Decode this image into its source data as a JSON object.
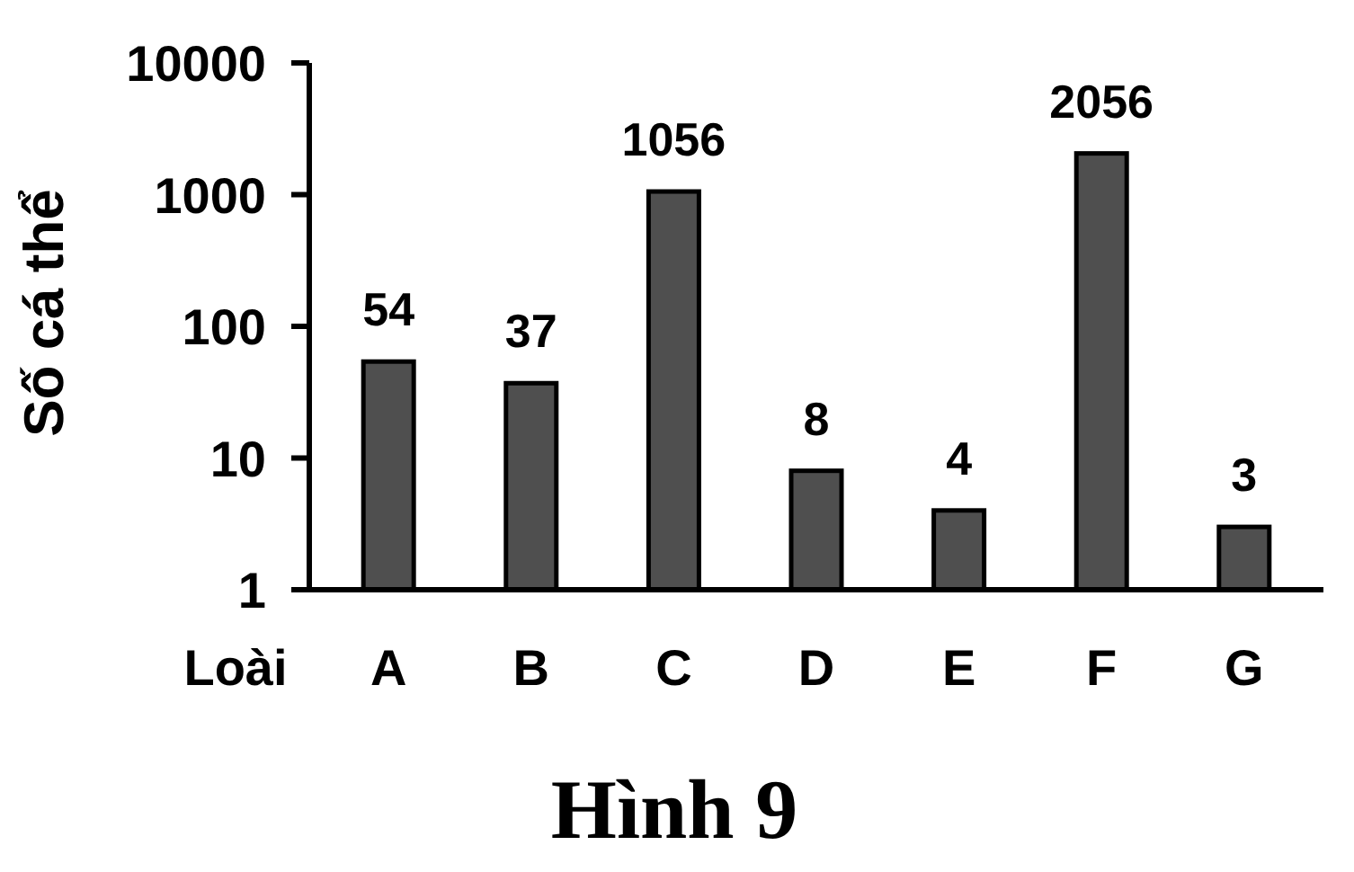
{
  "chart_data": {
    "type": "bar",
    "title": "Hình 9",
    "xlabel": "Loài",
    "ylabel": "Số cá thể",
    "categories": [
      "A",
      "B",
      "C",
      "D",
      "E",
      "F",
      "G"
    ],
    "values": [
      54,
      37,
      1056,
      8,
      4,
      2056,
      3
    ],
    "data_labels": true,
    "color": "#4f4f4f",
    "log": true,
    "ylim": [
      1,
      10000
    ],
    "yticks": [
      1,
      10,
      100,
      1000,
      10000
    ]
  }
}
